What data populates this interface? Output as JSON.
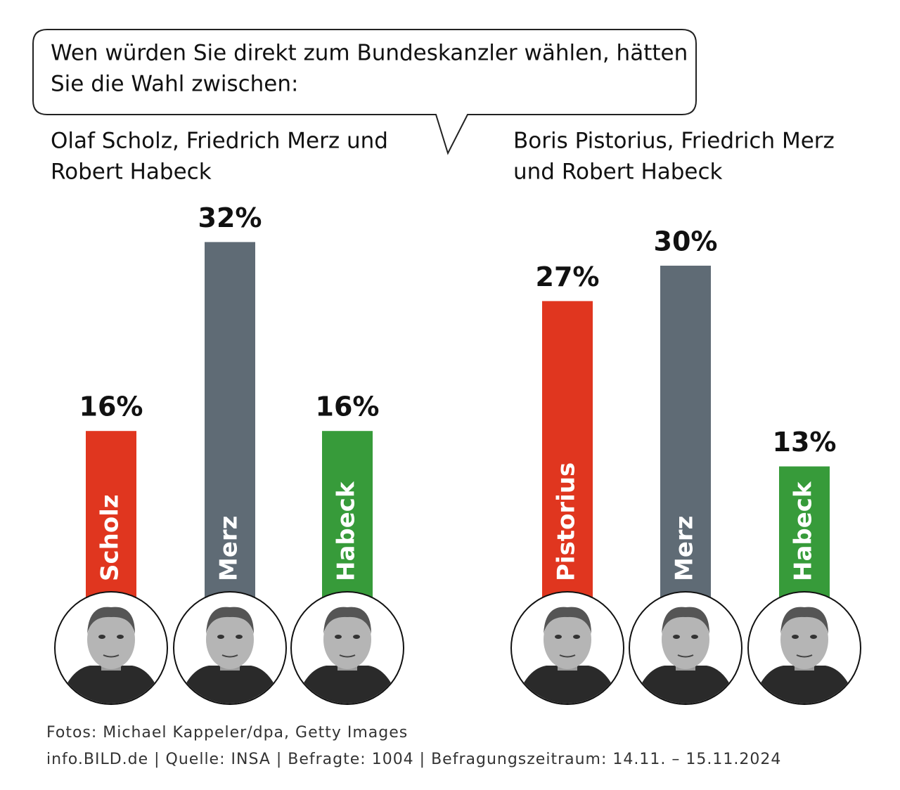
{
  "question": [
    "Wen würden Sie direkt zum Bundeskanzler wählen, hätten",
    "Sie die Wahl zwischen:"
  ],
  "chart_data": [
    {
      "type": "bar",
      "subtitle": [
        "Olaf Scholz, Friedrich Merz und",
        "Robert Habeck"
      ],
      "categories": [
        "Scholz",
        "Merz",
        "Habeck"
      ],
      "values": [
        16,
        32,
        16
      ],
      "value_labels": [
        "16%",
        "32%",
        "16%"
      ],
      "colors": [
        "#e0361f",
        "#5f6b75",
        "#379b3a"
      ]
    },
    {
      "type": "bar",
      "subtitle": [
        "Boris Pistorius, Friedrich Merz",
        "und Robert Habeck"
      ],
      "categories": [
        "Pistorius",
        "Merz",
        "Habeck"
      ],
      "values": [
        27,
        30,
        13
      ],
      "value_labels": [
        "27%",
        "30%",
        "13%"
      ],
      "colors": [
        "#e0361f",
        "#5f6b75",
        "#379b3a"
      ]
    }
  ],
  "credits": "Fotos: Michael Kappeler/dpa, Getty Images",
  "source": "info.BILD.de | Quelle: INSA | Befragte: 1004 | Befragungszeitraum: 14.11. – 15.11.2024"
}
